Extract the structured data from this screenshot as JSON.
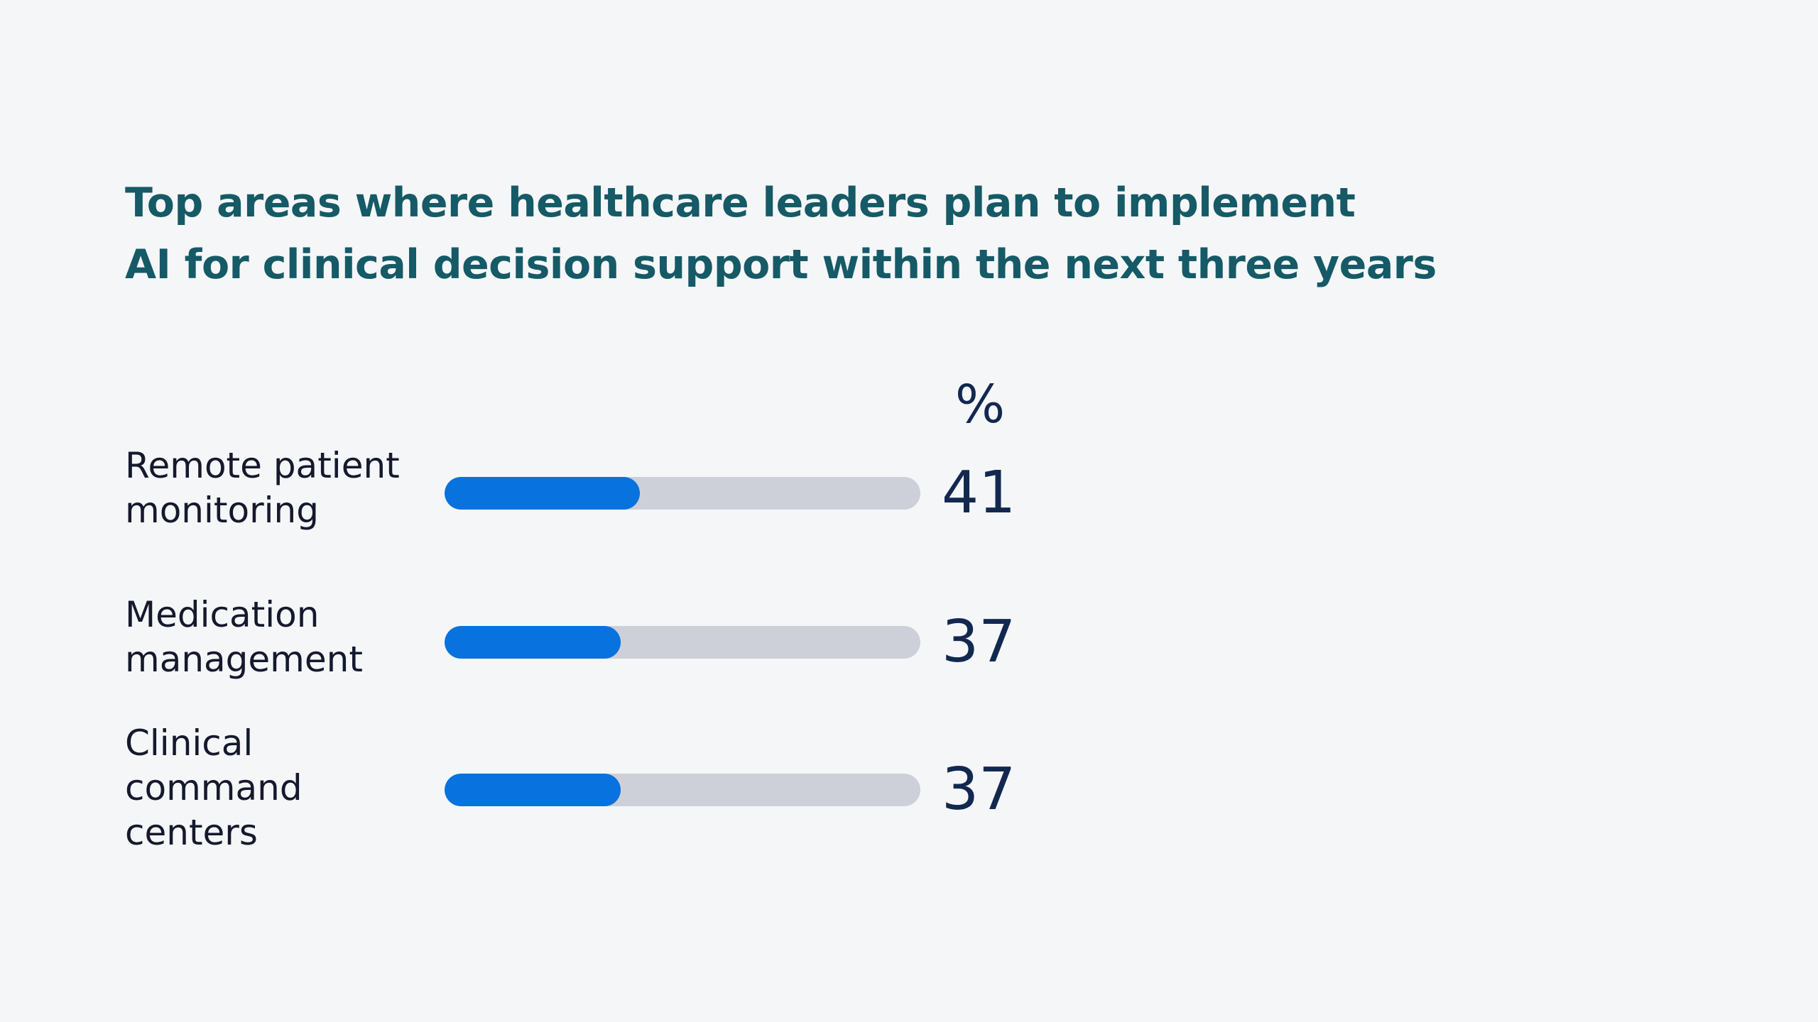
{
  "chart_data": {
    "type": "bar",
    "orientation": "horizontal",
    "title_lines": [
      "Top areas where healthcare leaders plan to implement",
      "AI for clinical decision support within the next three years"
    ],
    "unit_label": "%",
    "categories": [
      "Remote patient\nmonitoring",
      "Medication\nmanagement",
      "Clinical\ncommand\ncenters"
    ],
    "values": [
      41,
      37,
      37
    ],
    "xlim": [
      0,
      100
    ],
    "grid": false,
    "legend": "none",
    "colors": {
      "bar": "#0872de",
      "track": "#cdd0d8",
      "title": "#155a66",
      "value": "#13284f",
      "background": "#f4f6f8"
    }
  }
}
